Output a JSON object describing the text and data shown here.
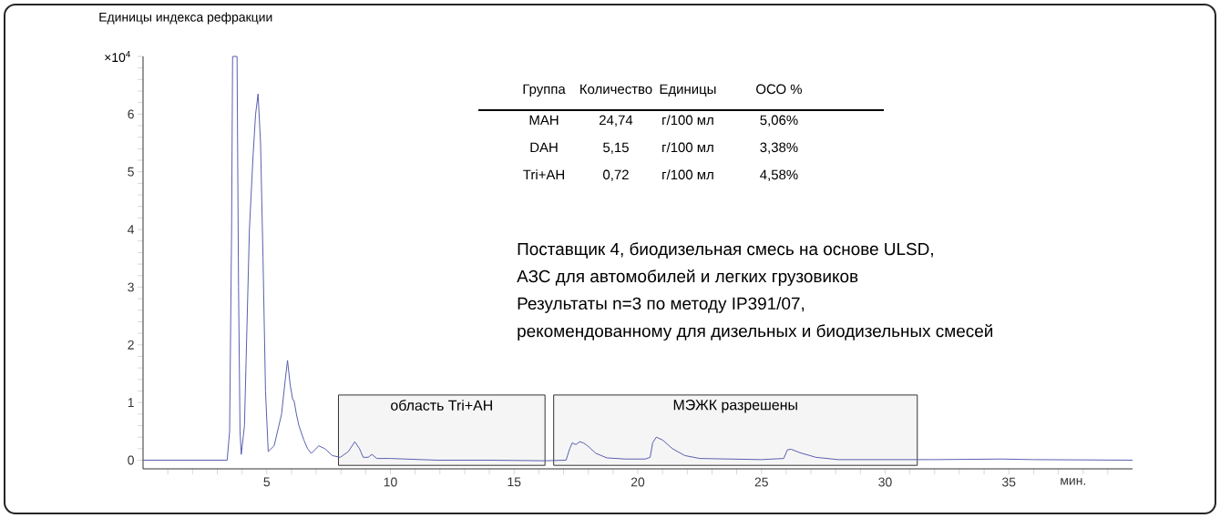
{
  "chart_data": {
    "type": "line",
    "ylabel": "Единицы индекса рефракции",
    "xlabel": "мин.",
    "xlim": [
      0,
      40
    ],
    "ylim": [
      -0.15,
      7
    ],
    "xticks": [
      {
        "value": 1,
        "label": null
      },
      {
        "value": 2,
        "label": null
      },
      {
        "value": 3,
        "label": null
      },
      {
        "value": 4,
        "label": null
      },
      5,
      {
        "value": 6,
        "label": null
      },
      {
        "value": 7,
        "label": null
      },
      {
        "value": 8,
        "label": null
      },
      {
        "value": 9,
        "label": null
      },
      10,
      {
        "value": 11,
        "label": null
      },
      {
        "value": 12,
        "label": null
      },
      {
        "value": 13,
        "label": null
      },
      {
        "value": 14,
        "label": null
      },
      15,
      {
        "value": 16,
        "label": null
      },
      {
        "value": 17,
        "label": null
      },
      {
        "value": 18,
        "label": null
      },
      {
        "value": 19,
        "label": null
      },
      20,
      {
        "value": 21,
        "label": null
      },
      {
        "value": 22,
        "label": null
      },
      {
        "value": 23,
        "label": null
      },
      {
        "value": 24,
        "label": null
      },
      25,
      {
        "value": 26,
        "label": null
      },
      {
        "value": 27,
        "label": null
      },
      {
        "value": 28,
        "label": null
      },
      {
        "value": 29,
        "label": null
      },
      30,
      {
        "value": 31,
        "label": null
      },
      {
        "value": 32,
        "label": null
      },
      {
        "value": 33,
        "label": null
      },
      {
        "value": 34,
        "label": null
      },
      35,
      {
        "value": 36,
        "label": null
      },
      {
        "value": 37,
        "label": null
      },
      {
        "value": 38,
        "label": null
      },
      {
        "value": 39,
        "label": null
      }
    ],
    "yticks": [
      0,
      {
        "value": 0.2,
        "label": null
      },
      {
        "value": 0.4,
        "label": null
      },
      {
        "value": 0.6,
        "label": null
      },
      {
        "value": 0.8,
        "label": null
      },
      1,
      {
        "value": 1.2,
        "label": null
      },
      {
        "value": 1.4,
        "label": null
      },
      {
        "value": 1.6,
        "label": null
      },
      {
        "value": 1.8,
        "label": null
      },
      2,
      {
        "value": 2.2,
        "label": null
      },
      {
        "value": 2.4,
        "label": null
      },
      {
        "value": 2.6,
        "label": null
      },
      {
        "value": 2.8,
        "label": null
      },
      3,
      {
        "value": 3.2,
        "label": null
      },
      {
        "value": 3.4,
        "label": null
      },
      {
        "value": 3.6,
        "label": null
      },
      {
        "value": 3.8,
        "label": null
      },
      4,
      {
        "value": 4.2,
        "label": null
      },
      {
        "value": 4.4,
        "label": null
      },
      {
        "value": 4.6,
        "label": null
      },
      {
        "value": 4.8,
        "label": null
      },
      5,
      {
        "value": 5.2,
        "label": null
      },
      {
        "value": 5.4,
        "label": null
      },
      {
        "value": 5.6,
        "label": null
      },
      {
        "value": 5.8,
        "label": null
      },
      6,
      {
        "value": 6.2,
        "label": null
      },
      {
        "value": 6.4,
        "label": null
      },
      {
        "value": 6.6,
        "label": null
      },
      {
        "value": 6.8,
        "label": null
      },
      {
        "value": 7,
        "label": null
      }
    ],
    "grid": false,
    "marker": "none",
    "line_style": "solid",
    "series": [
      {
        "color": "#5a5fb0",
        "x": [
          0,
          2,
          3.4,
          3.5,
          3.58,
          3.62,
          3.8,
          3.86,
          3.92,
          3.97,
          4.1,
          4.3,
          4.45,
          4.55,
          4.65,
          4.75,
          4.85,
          4.95,
          5.06,
          5.3,
          5.6,
          5.75,
          5.84,
          5.95,
          6.05,
          6.1,
          6.2,
          6.3,
          6.5,
          6.65,
          6.8,
          6.95,
          7.1,
          7.35,
          7.65,
          7.97,
          8.3,
          8.56,
          8.75,
          8.9,
          9.1,
          9.25,
          9.45,
          10,
          10.6,
          11.9,
          14,
          16.25,
          17.1,
          17.25,
          17.35,
          17.5,
          17.65,
          17.8,
          17.97,
          18.3,
          18.75,
          19.5,
          20.3,
          20.5,
          20.6,
          20.75,
          21,
          21.4,
          21.9,
          22.5,
          25,
          25.9,
          26.05,
          26.2,
          26.55,
          27.2,
          28.1,
          32,
          34.7,
          36,
          40
        ],
        "values": [
          0,
          0,
          0,
          0.5,
          4,
          7,
          7,
          3,
          0.5,
          0.1,
          0.6,
          4,
          5.3,
          6,
          6.35,
          5.5,
          3.5,
          1.2,
          0.15,
          0.25,
          0.8,
          1.4,
          1.73,
          1.3,
          1.05,
          1.04,
          0.8,
          0.6,
          0.35,
          0.2,
          0.12,
          0.18,
          0.25,
          0.2,
          0.08,
          0.05,
          0.15,
          0.32,
          0.2,
          0.05,
          0.05,
          0.1,
          0.03,
          0.03,
          0.02,
          0,
          0,
          -0.01,
          0,
          0.2,
          0.3,
          0.27,
          0.32,
          0.3,
          0.25,
          0.12,
          0.04,
          0.02,
          0.02,
          0.05,
          0.3,
          0.4,
          0.35,
          0.2,
          0.08,
          0.03,
          0.01,
          0.03,
          0.18,
          0.19,
          0.13,
          0.05,
          0.01,
          0.01,
          0.02,
          0.01,
          0
        ]
      }
    ],
    "bands": [
      {
        "axis": "x",
        "from": 7.9,
        "to": 16.25,
        "label": "область Tri+AH"
      },
      {
        "axis": "x",
        "from": 16.6,
        "to": 31.3,
        "label": "МЭЖК разрешены"
      }
    ],
    "annotations": [
      "×10$^{4}$",
      "Группа",
      "Количество",
      "Единицы",
      "ОСО %",
      "МАН",
      "24,74",
      "г/100 мл",
      "5,06%",
      "DAH",
      "5,15",
      "г/100 мл",
      "3,38%",
      "Tri+AH",
      "0,72",
      "г/100 мл",
      "4,58%",
      "Поставщик 4, биодизельная смесь на основе ULSD,",
      "АЗС для автомобилей и легких грузовиков",
      "Результаты n=3 по методу IP391/07,",
      "рекомендованному для дизельных и биодизельных смесей"
    ]
  }
}
